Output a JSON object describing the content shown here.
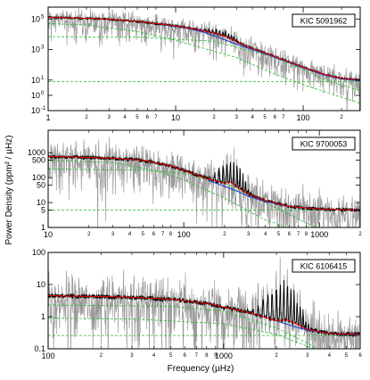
{
  "figure": {
    "ylabel": "Power Density (ppm² / µHz)",
    "xlabel": "Frequency (µHz)"
  },
  "colors": {
    "raw": "#9a9a9a",
    "smoothed": "#000000",
    "fit": "#dd0000",
    "background": "#2040c8",
    "components": "#22bb22"
  },
  "chart_data": [
    {
      "type": "line",
      "label": "KIC 5091962",
      "xscale": "log",
      "yscale": "log",
      "xlim": [
        1,
        280
      ],
      "ylim": [
        0.1,
        600000
      ],
      "x_major_ticks": [
        {
          "v": 1,
          "t": "1"
        },
        {
          "v": 10,
          "t": "10"
        },
        {
          "v": 100,
          "t": "100"
        }
      ],
      "x_minor_ticks": [
        {
          "v": 2,
          "t": "2"
        },
        {
          "v": 3,
          "t": "3"
        },
        {
          "v": 4,
          "t": "4"
        },
        {
          "v": 5,
          "t": "5"
        },
        {
          "v": 6,
          "t": "6"
        },
        {
          "v": 7,
          "t": "7"
        },
        {
          "v": 20,
          "t": "2"
        },
        {
          "v": 30,
          "t": "3"
        },
        {
          "v": 40,
          "t": "4"
        },
        {
          "v": 50,
          "t": "5"
        },
        {
          "v": 60,
          "t": "6"
        },
        {
          "v": 70,
          "t": "7"
        },
        {
          "v": 200,
          "t": "2"
        }
      ],
      "y_ticks": [
        {
          "v": 0.1,
          "t": "10",
          "e": "-1"
        },
        {
          "v": 1,
          "t": "10",
          "e": "0"
        },
        {
          "v": 10,
          "t": "10",
          "e": "1"
        },
        {
          "v": 1000,
          "t": "10",
          "e": "3"
        },
        {
          "v": 100000,
          "t": "10",
          "e": "5"
        }
      ],
      "fit": {
        "x": [
          1,
          1.5,
          2,
          3,
          5,
          8,
          12,
          16,
          20,
          24,
          28,
          32,
          40,
          60,
          100,
          150,
          200,
          280
        ],
        "y": [
          130000,
          120000,
          110000,
          95000,
          70000,
          45000,
          28000,
          18000,
          12000,
          8000,
          4500,
          2500,
          1200,
          350,
          70,
          22,
          13,
          10
        ]
      },
      "background_fit": {
        "x": [
          8,
          12,
          16,
          20,
          24,
          28,
          32,
          40,
          60,
          100,
          150,
          200,
          280
        ],
        "y": [
          42000,
          26000,
          15000,
          8000,
          4500,
          2800,
          1800,
          1000,
          320,
          65,
          20,
          12,
          9
        ]
      },
      "components": [
        {
          "x": [
            1,
            5,
            20,
            60,
            100,
            150,
            280
          ],
          "y": [
            7000,
            6500,
            3500,
            300,
            50,
            10,
            2
          ]
        },
        {
          "x": [
            1,
            2,
            5,
            10,
            30,
            60,
            100,
            280
          ],
          "y": [
            50000,
            40000,
            15000,
            4000,
            300,
            25,
            5,
            0.3
          ]
        },
        {
          "x": [
            1,
            280
          ],
          "y": [
            8,
            8
          ]
        }
      ],
      "oscillations": {
        "numax": 22,
        "width": 4,
        "peak": 40000,
        "spacing": 1.3
      }
    },
    {
      "type": "line",
      "label": "KIC 9700053",
      "xscale": "log",
      "yscale": "log",
      "xlim": [
        10,
        2000
      ],
      "ylim": [
        1,
        8000
      ],
      "x_major_ticks": [
        {
          "v": 10,
          "t": "10"
        },
        {
          "v": 100,
          "t": "100"
        },
        {
          "v": 1000,
          "t": "1000"
        }
      ],
      "x_minor_ticks": [
        {
          "v": 20,
          "t": "2"
        },
        {
          "v": 30,
          "t": "3"
        },
        {
          "v": 40,
          "t": "4"
        },
        {
          "v": 50,
          "t": "5"
        },
        {
          "v": 60,
          "t": "6"
        },
        {
          "v": 70,
          "t": "7"
        },
        {
          "v": 80,
          "t": "8"
        },
        {
          "v": 200,
          "t": "2"
        },
        {
          "v": 300,
          "t": "3"
        },
        {
          "v": 400,
          "t": "4"
        },
        {
          "v": 500,
          "t": "5"
        },
        {
          "v": 600,
          "t": "6"
        },
        {
          "v": 700,
          "t": "7"
        },
        {
          "v": 800,
          "t": "8"
        },
        {
          "v": 2000,
          "t": "2"
        }
      ],
      "y_ticks": [
        {
          "v": 1,
          "t": "1"
        },
        {
          "v": 5,
          "t": "5"
        },
        {
          "v": 10,
          "t": "10"
        },
        {
          "v": 50,
          "t": "50"
        },
        {
          "v": 100,
          "t": "100"
        },
        {
          "v": 500,
          "t": "500"
        },
        {
          "v": 1000,
          "t": "1000"
        }
      ],
      "fit": {
        "x": [
          10,
          15,
          20,
          30,
          50,
          80,
          100,
          150,
          200,
          220,
          250,
          300,
          400,
          600,
          1000,
          2000
        ],
        "y": [
          700,
          680,
          650,
          600,
          500,
          300,
          200,
          90,
          60,
          70,
          40,
          22,
          12,
          7,
          5.5,
          5
        ]
      },
      "background_fit": {
        "x": [
          150,
          200,
          250,
          300,
          400,
          600,
          1000,
          2000
        ],
        "y": [
          80,
          45,
          28,
          18,
          11,
          7,
          5.5,
          5
        ]
      },
      "components": [
        {
          "x": [
            10,
            50,
            100,
            200,
            400,
            800,
            2000
          ],
          "y": [
            220,
            200,
            150,
            60,
            10,
            1.5,
            0.2
          ]
        },
        {
          "x": [
            10,
            30,
            60,
            100,
            200,
            400,
            2000
          ],
          "y": [
            500,
            400,
            200,
            80,
            15,
            2,
            0.1
          ]
        },
        {
          "x": [
            10,
            2000
          ],
          "y": [
            5,
            5
          ]
        }
      ],
      "oscillations": {
        "numax": 225,
        "width": 30,
        "peak": 1500,
        "spacing": 13
      }
    },
    {
      "type": "line",
      "label": "KIC 6106415",
      "xscale": "log",
      "yscale": "log",
      "xlim": [
        100,
        6000
      ],
      "ylim": [
        0.1,
        100
      ],
      "x_major_ticks": [
        {
          "v": 100,
          "t": "100"
        },
        {
          "v": 1000,
          "t": "1000"
        }
      ],
      "x_minor_ticks": [
        {
          "v": 200,
          "t": "2"
        },
        {
          "v": 300,
          "t": "3"
        },
        {
          "v": 400,
          "t": "4"
        },
        {
          "v": 500,
          "t": "5"
        },
        {
          "v": 600,
          "t": "6"
        },
        {
          "v": 700,
          "t": "7"
        },
        {
          "v": 800,
          "t": "8"
        },
        {
          "v": 900,
          "t": "9"
        },
        {
          "v": 2000,
          "t": "2"
        },
        {
          "v": 3000,
          "t": "3"
        },
        {
          "v": 4000,
          "t": "4"
        },
        {
          "v": 5000,
          "t": "5"
        },
        {
          "v": 6000,
          "t": "6"
        }
      ],
      "y_ticks": [
        {
          "v": 0.1,
          "t": "0.1"
        },
        {
          "v": 1,
          "t": "1"
        },
        {
          "v": 10,
          "t": "10"
        },
        {
          "v": 100,
          "t": "100"
        }
      ],
      "fit": {
        "x": [
          100,
          200,
          300,
          500,
          800,
          1000,
          1500,
          2000,
          2300,
          2600,
          3000,
          4000,
          6000
        ],
        "y": [
          4.5,
          4.2,
          4,
          3.5,
          2.6,
          2,
          1.2,
          0.75,
          0.8,
          0.6,
          0.4,
          0.3,
          0.28
        ]
      },
      "background_fit": {
        "x": [
          1500,
          2000,
          2500,
          3000,
          4000,
          6000
        ],
        "y": [
          1.2,
          0.75,
          0.5,
          0.38,
          0.3,
          0.27
        ]
      },
      "components": [
        {
          "x": [
            100,
            500,
            1000,
            2000,
            3000,
            4000,
            6000
          ],
          "y": [
            2.3,
            2.1,
            1.5,
            0.45,
            0.15,
            0.06,
            0.02
          ]
        },
        {
          "x": [
            100,
            300,
            1000,
            2000,
            3000,
            6000
          ],
          "y": [
            0.9,
            0.85,
            0.6,
            0.28,
            0.12,
            0.03
          ]
        },
        {
          "x": [
            100,
            6000
          ],
          "y": [
            0.26,
            0.26
          ]
        }
      ],
      "oscillations": {
        "numax": 2200,
        "width": 300,
        "peak": 35,
        "spacing": 105
      }
    }
  ]
}
